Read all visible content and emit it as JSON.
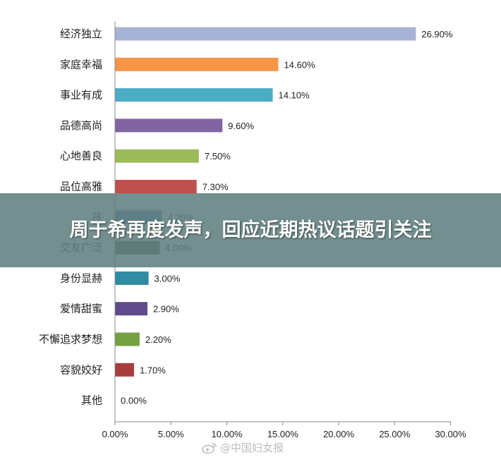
{
  "chart_data": {
    "type": "bar",
    "orientation": "horizontal",
    "categories": [
      "经济独立",
      "家庭幸福",
      "事业有成",
      "品德高尚",
      "心地善良",
      "品位高雅",
      "孩",
      "交友广泛",
      "身份显赫",
      "爱情甜蜜",
      "不懈追求梦想",
      "容貌姣好",
      "其他"
    ],
    "values": [
      26.9,
      14.6,
      14.1,
      9.6,
      7.5,
      7.3,
      4.2,
      4.0,
      3.0,
      2.9,
      2.2,
      1.7,
      0.0
    ],
    "data_labels": [
      "26.90%",
      "14.60%",
      "14.10%",
      "9.60%",
      "7.50%",
      "7.30%",
      "4.20%",
      "4.00%",
      "3.00%",
      "2.90%",
      "2.20%",
      "1.70%",
      "0.00%"
    ],
    "colors": [
      "#a6b3d6",
      "#f79646",
      "#4bacc6",
      "#8064a2",
      "#9bbb59",
      "#c0504d",
      "#4f81bd",
      "#5a5c4f",
      "#2f8ca3",
      "#5f4a8b",
      "#76a043",
      "#a83d3d",
      "#cccccc"
    ],
    "xlim": [
      0,
      30
    ],
    "x_ticks": [
      0,
      5,
      10,
      15,
      20,
      25,
      30
    ],
    "x_tick_labels": [
      "0.00%",
      "5.00%",
      "10.00%",
      "15.00%",
      "20.00%",
      "25.00%",
      "30.00%"
    ],
    "grid": false,
    "legend": "none"
  },
  "banner": {
    "title": "周于希再度发声，回应近期热议话题引关注"
  },
  "watermark": {
    "text": "@中国妇女报",
    "icon": "weibo-icon"
  }
}
